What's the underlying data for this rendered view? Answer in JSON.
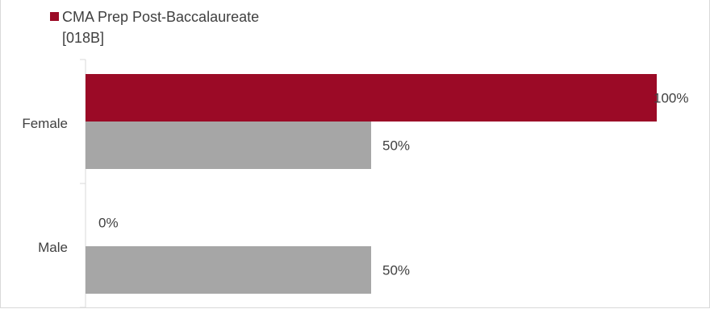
{
  "chart_data": {
    "type": "bar",
    "orientation": "horizontal",
    "categories": [
      "Female",
      "Male"
    ],
    "series": [
      {
        "name": "CMA Prep Post-Baccalaureate [018B]",
        "values": [
          100,
          0
        ],
        "labels": [
          "100%",
          "0%"
        ],
        "color": "#9b0a26"
      },
      {
        "values": [
          50,
          50
        ],
        "labels": [
          "50%",
          "50%"
        ],
        "color": "#a6a6a6"
      }
    ],
    "xlim": [
      0,
      100
    ],
    "grid": false,
    "legend_position": "top-left"
  },
  "legend": {
    "line1": "CMA Prep Post-Baccalaureate",
    "line2": "[018B]"
  }
}
